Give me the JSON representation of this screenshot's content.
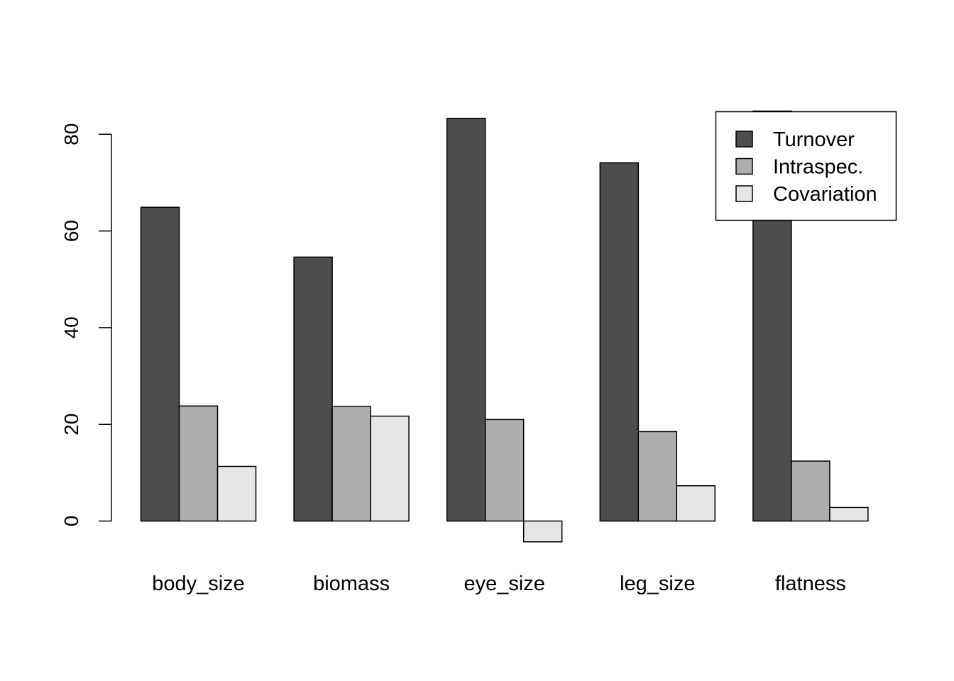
{
  "chart_data": {
    "type": "bar",
    "categories": [
      "body_size",
      "biomass",
      "eye_size",
      "leg_size",
      "flatness"
    ],
    "series": [
      {
        "name": "Turnover",
        "color": "#4d4d4d",
        "values": [
          64.9,
          54.6,
          83.3,
          74.1,
          84.8
        ]
      },
      {
        "name": "Intraspec.",
        "color": "#aeaeae",
        "values": [
          23.8,
          23.7,
          21.0,
          18.5,
          12.4
        ]
      },
      {
        "name": "Covariation",
        "color": "#e6e6e6",
        "values": [
          11.3,
          21.7,
          -4.3,
          7.3,
          2.8
        ]
      }
    ],
    "yticks": [
      0,
      20,
      40,
      60,
      80
    ],
    "ylim": [
      -4.3,
      84.8
    ],
    "title": "",
    "xlabel": "",
    "ylabel": "",
    "legend_position": "top-right",
    "grid": false
  }
}
